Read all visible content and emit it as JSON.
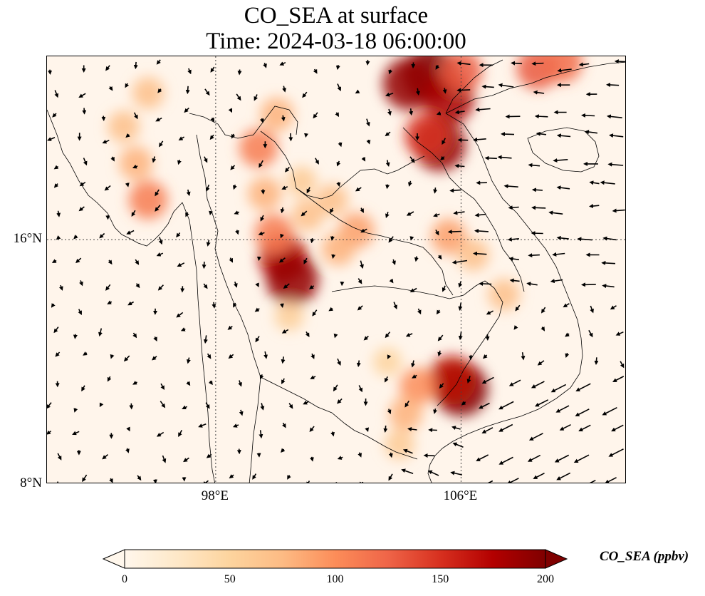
{
  "title_line1": "CO_SEA at surface",
  "title_line2": "Time: 2024-03-18 06:00:00",
  "map": {
    "variable": "CO_SEA",
    "level": "surface",
    "extent": {
      "lon_min": 92.5,
      "lon_max": 111.4,
      "lat_min": 8,
      "lat_max": 22
    },
    "lon_ticks": [
      {
        "value": 98,
        "label": "98°E"
      },
      {
        "value": 106,
        "label": "106°E"
      }
    ],
    "lat_ticks": [
      {
        "value": 8,
        "label": "8°N"
      },
      {
        "value": 16,
        "label": "16°N"
      }
    ],
    "background_color": "#fff5eb",
    "plumes": [
      {
        "lon": 105.0,
        "lat": 21.4,
        "value": 210
      },
      {
        "lon": 104.3,
        "lat": 21.1,
        "value": 190
      },
      {
        "lon": 105.6,
        "lat": 20.6,
        "value": 180
      },
      {
        "lon": 108.5,
        "lat": 21.6,
        "value": 130
      },
      {
        "lon": 109.3,
        "lat": 21.8,
        "value": 120
      },
      {
        "lon": 106.0,
        "lat": 21.5,
        "value": 130
      },
      {
        "lon": 105.3,
        "lat": 19.1,
        "value": 190
      },
      {
        "lon": 104.9,
        "lat": 19.4,
        "value": 150
      },
      {
        "lon": 105.6,
        "lat": 16.1,
        "value": 90
      },
      {
        "lon": 106.4,
        "lat": 15.5,
        "value": 70
      },
      {
        "lon": 107.4,
        "lat": 14.2,
        "value": 70
      },
      {
        "lon": 100.2,
        "lat": 15.4,
        "value": 170
      },
      {
        "lon": 100.5,
        "lat": 14.7,
        "value": 190
      },
      {
        "lon": 99.9,
        "lat": 16.2,
        "value": 110
      },
      {
        "lon": 99.6,
        "lat": 17.5,
        "value": 80
      },
      {
        "lon": 101.0,
        "lat": 16.8,
        "value": 70
      },
      {
        "lon": 102.6,
        "lat": 16.3,
        "value": 90
      },
      {
        "lon": 102.0,
        "lat": 15.7,
        "value": 80
      },
      {
        "lon": 101.8,
        "lat": 17.3,
        "value": 70
      },
      {
        "lon": 99.4,
        "lat": 19.0,
        "value": 110
      },
      {
        "lon": 100.0,
        "lat": 20.1,
        "value": 80
      },
      {
        "lon": 100.8,
        "lat": 17.9,
        "value": 60
      },
      {
        "lon": 95.8,
        "lat": 17.3,
        "value": 110
      },
      {
        "lon": 95.4,
        "lat": 18.5,
        "value": 80
      },
      {
        "lon": 95.0,
        "lat": 19.7,
        "value": 70
      },
      {
        "lon": 95.8,
        "lat": 20.8,
        "value": 70
      },
      {
        "lon": 106.0,
        "lat": 11.1,
        "value": 200
      },
      {
        "lon": 105.7,
        "lat": 11.4,
        "value": 170
      },
      {
        "lon": 104.6,
        "lat": 11.2,
        "value": 100
      },
      {
        "lon": 104.2,
        "lat": 10.3,
        "value": 80
      },
      {
        "lon": 104.0,
        "lat": 9.3,
        "value": 60
      },
      {
        "lon": 103.6,
        "lat": 12.0,
        "value": 50
      },
      {
        "lon": 100.4,
        "lat": 13.5,
        "value": 55
      }
    ]
  },
  "colorbar": {
    "title": "CO_SEA (ppbv)",
    "vmin": 0,
    "vmax": 200,
    "extend": "both",
    "ticks": [
      "0",
      "50",
      "100",
      "150",
      "200"
    ],
    "colors": [
      "#fff5eb",
      "#fee6ce",
      "#fdd0a2",
      "#fdae6b",
      "#fd8d3c",
      "#f16913",
      "#d94801",
      "#a63603",
      "#7f2704",
      "#7f0000"
    ],
    "cmap_colors": [
      "#fff7ec",
      "#fee8c8",
      "#fdd49e",
      "#fdbb84",
      "#fc8d59",
      "#ef6548",
      "#d7301f",
      "#b30000",
      "#7f0000"
    ]
  }
}
